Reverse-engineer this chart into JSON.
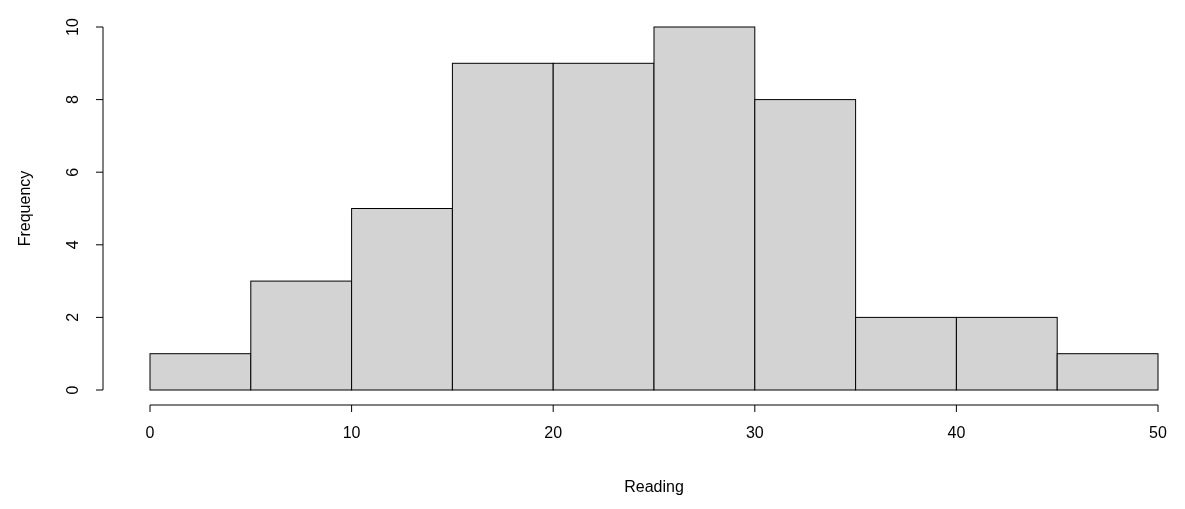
{
  "chart_data": {
    "type": "histogram",
    "xlabel": "Reading",
    "ylabel": "Frequency",
    "bins": [
      0,
      5,
      10,
      15,
      20,
      25,
      30,
      35,
      40,
      45,
      50
    ],
    "values": [
      1,
      3,
      5,
      9,
      9,
      10,
      8,
      2,
      2,
      1
    ],
    "color": "#d3d3d3",
    "xlim": [
      0,
      50
    ],
    "xticks": [
      0,
      10,
      20,
      30,
      40,
      50
    ],
    "ylim": [
      0,
      10
    ],
    "yticks": [
      0,
      2,
      4,
      6,
      8,
      10
    ],
    "grid": false
  }
}
